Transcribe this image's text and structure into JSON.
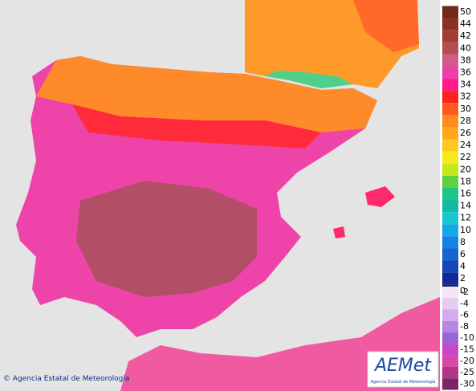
{
  "footer": {
    "copyright": "© Agencia Estatal de Meteorología"
  },
  "logo": {
    "name": "AEMet",
    "subtitle": "Agencia Estatal de Meteorología"
  },
  "legend": {
    "values": [
      50,
      44,
      42,
      40,
      38,
      36,
      34,
      32,
      30,
      28,
      26,
      24,
      22,
      20,
      18,
      16,
      14,
      12,
      10,
      8,
      6,
      4,
      2,
      0,
      -2,
      -4,
      -6,
      -8,
      -10,
      -15,
      -20,
      -25,
      -30
    ],
    "colors": [
      "#6e2a1c",
      "#8a3325",
      "#a23d33",
      "#b54e4e",
      "#d25a8c",
      "#ee3fa6",
      "#ff1a8c",
      "#ff2020",
      "#ff5a1e",
      "#ff8a1e",
      "#ffa81e",
      "#ffc81e",
      "#f5ea1e",
      "#c6e61e",
      "#5ed23a",
      "#1fc48a",
      "#12b8a8",
      "#14c8d0",
      "#14a8e6",
      "#1482e6",
      "#1464d2",
      "#1446b4",
      "#142896",
      "#0c1470",
      "#f2e6f2",
      "#e6ccf0",
      "#d4aaf0",
      "#b686e4",
      "#9a64d8",
      "#c448c8",
      "#d848a8",
      "#b43488",
      "#7e2462"
    ]
  }
}
